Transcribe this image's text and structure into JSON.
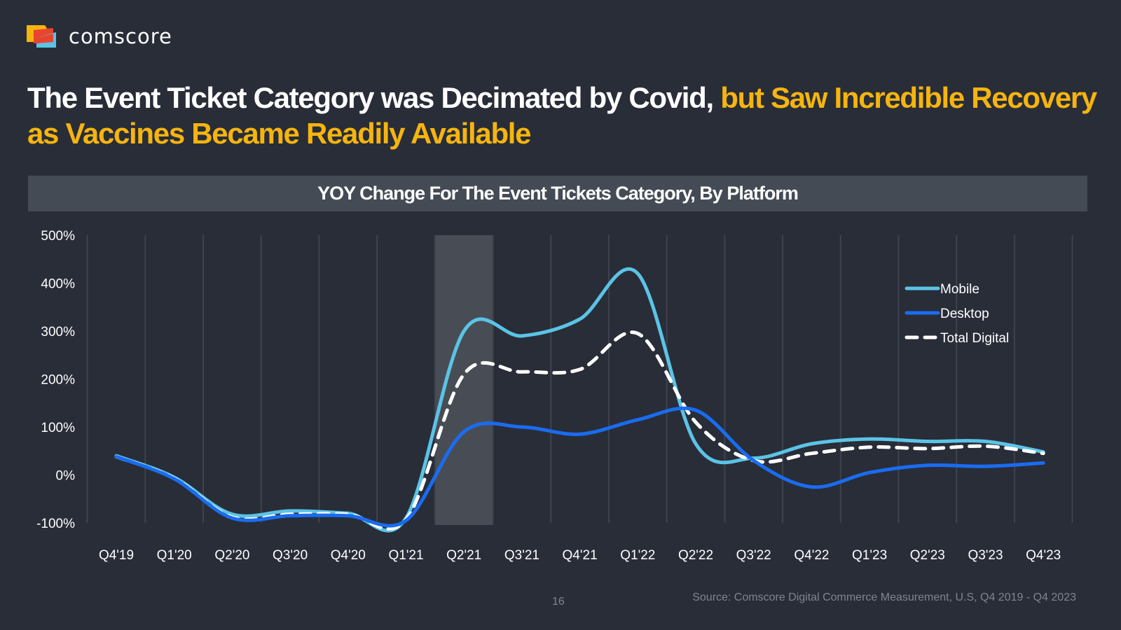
{
  "brand": {
    "name": "comscore"
  },
  "headline": {
    "part1": "The Event Ticket Category was Decimated by Covid, ",
    "part2": "but Saw Incredible Recovery as Vaccines Became Readily Available",
    "highlight_color": "#f6b40e"
  },
  "chart_title": "YOY Change For The Event Tickets Category, By Platform",
  "chart_data": {
    "type": "line",
    "title": "YOY Change For The Event Tickets Category, By Platform",
    "categories": [
      "Q4'19",
      "Q1'20",
      "Q2'20",
      "Q3'20",
      "Q4'20",
      "Q1'21",
      "Q2'21",
      "Q3'21",
      "Q4'21",
      "Q1'22",
      "Q2'22",
      "Q3'22",
      "Q4'22",
      "Q1'23",
      "Q2'23",
      "Q3'23",
      "Q4'23"
    ],
    "y_ticks": [
      "500%",
      "400%",
      "300%",
      "200%",
      "100%",
      "0%",
      "-100%"
    ],
    "ylim": [
      -100,
      500
    ],
    "y_unit": "%",
    "highlight_category": "Q2'21",
    "grid": "vertical",
    "legend_position": "right",
    "series": [
      {
        "name": "Mobile",
        "color": "#5bc3e6",
        "style": "solid",
        "values": [
          40,
          -5,
          -82,
          -75,
          -80,
          -90,
          300,
          290,
          325,
          420,
          65,
          35,
          65,
          75,
          70,
          70,
          48
        ]
      },
      {
        "name": "Desktop",
        "color": "#1a6cf0",
        "style": "solid",
        "values": [
          38,
          -8,
          -90,
          -85,
          -85,
          -95,
          90,
          100,
          85,
          115,
          135,
          30,
          -25,
          5,
          20,
          18,
          25
        ]
      },
      {
        "name": "Total Digital",
        "color": "#ffffff",
        "style": "dashed",
        "values": [
          38,
          -7,
          -88,
          -82,
          -82,
          -93,
          210,
          215,
          220,
          295,
          110,
          30,
          45,
          58,
          55,
          60,
          45
        ]
      }
    ]
  },
  "footnote": "Source: Comscore Digital Commerce Measurement, U.S, Q4 2019 - Q4 2023",
  "page_number": "16"
}
